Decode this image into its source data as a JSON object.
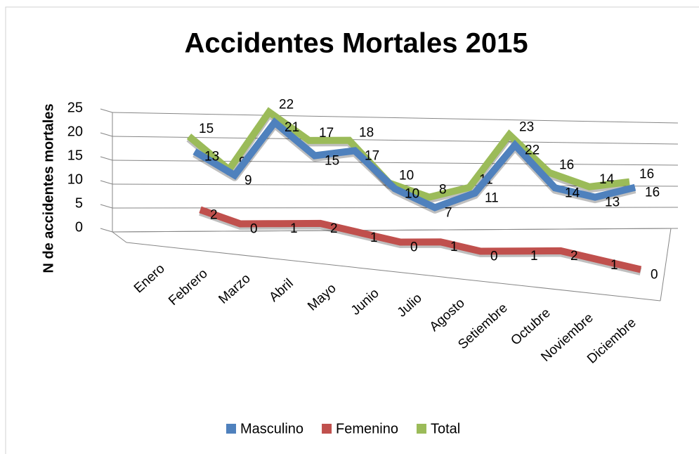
{
  "chart_data": {
    "type": "line3d",
    "title": "Accidentes Mortales 2015",
    "y_label": "N de accidentes mortales",
    "categories": [
      "Enero",
      "Febrero",
      "Marzo",
      "Abril",
      "Mayo",
      "Junio",
      "Julio",
      "Agosto",
      "Setiembre",
      "Octubre",
      "Noviembre",
      "Diciembre"
    ],
    "series": [
      {
        "name": "Masculino",
        "color": "#4f81bd",
        "values": [
          13,
          9,
          21,
          15,
          17,
          10,
          7,
          11,
          22,
          14,
          13,
          16
        ]
      },
      {
        "name": "Femenino",
        "color": "#c0504d",
        "values": [
          2,
          0,
          1,
          2,
          1,
          0,
          1,
          0,
          1,
          2,
          1,
          0
        ]
      },
      {
        "name": "Total",
        "color": "#9bbb59",
        "values": [
          15,
          9,
          22,
          17,
          18,
          10,
          8,
          11,
          23,
          16,
          14,
          16
        ]
      }
    ],
    "ylim": [
      0,
      25
    ],
    "yticks": [
      0,
      5,
      10,
      15,
      20,
      25
    ],
    "grid": true,
    "legend": "bottom"
  }
}
